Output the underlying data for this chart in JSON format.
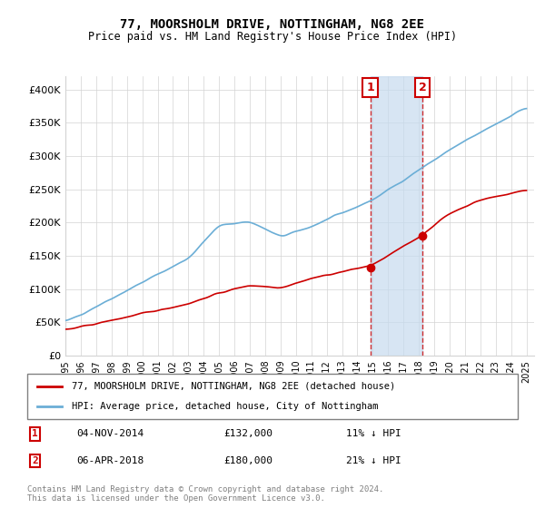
{
  "title": "77, MOORSHOLM DRIVE, NOTTINGHAM, NG8 2EE",
  "subtitle": "Price paid vs. HM Land Registry's House Price Index (HPI)",
  "legend_line1": "77, MOORSHOLM DRIVE, NOTTINGHAM, NG8 2EE (detached house)",
  "legend_line2": "HPI: Average price, detached house, City of Nottingham",
  "transaction1_label": "1",
  "transaction1_date": "04-NOV-2014",
  "transaction1_price": "£132,000",
  "transaction1_hpi": "11% ↓ HPI",
  "transaction2_label": "2",
  "transaction2_date": "06-APR-2018",
  "transaction2_price": "£180,000",
  "transaction2_hpi": "21% ↓ HPI",
  "footer": "Contains HM Land Registry data © Crown copyright and database right 2024.\nThis data is licensed under the Open Government Licence v3.0.",
  "red_color": "#cc0000",
  "blue_color": "#6baed6",
  "highlight_color": "#c6dbef",
  "marker_color_1": "#cc0000",
  "marker_color_2": "#cc0000",
  "ylim": [
    0,
    420000
  ],
  "yticks": [
    0,
    50000,
    100000,
    150000,
    200000,
    250000,
    300000,
    350000,
    400000
  ],
  "ytick_labels": [
    "£0",
    "£50K",
    "£100K",
    "£150K",
    "£200K",
    "£250K",
    "£300K",
    "£350K",
    "£400K"
  ],
  "start_year": 1995,
  "end_year": 2025
}
